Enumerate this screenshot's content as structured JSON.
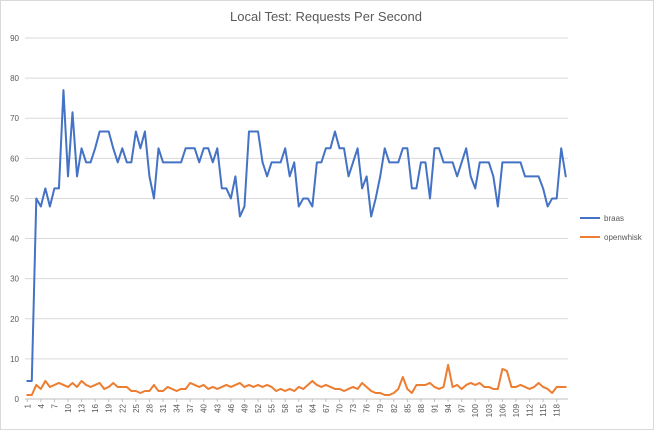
{
  "chart_data": {
    "type": "line",
    "title": "Local Test: Requests Per Second",
    "xlabel": "",
    "ylabel": "",
    "ylim": [
      0,
      90
    ],
    "y_ticks": [
      0,
      10,
      20,
      30,
      40,
      50,
      60,
      70,
      80,
      90
    ],
    "x_range": [
      1,
      120
    ],
    "x_tick_labels": [
      "1",
      "4",
      "7",
      "10",
      "13",
      "16",
      "19",
      "22",
      "25",
      "28",
      "31",
      "34",
      "37",
      "40",
      "43",
      "46",
      "49",
      "52",
      "55",
      "58",
      "61",
      "64",
      "67",
      "70",
      "73",
      "76",
      "79",
      "82",
      "85",
      "88",
      "91",
      "94",
      "97",
      "100",
      "103",
      "106",
      "109",
      "112",
      "115",
      "118"
    ],
    "grid": true,
    "legend_position": "right",
    "series": [
      {
        "name": "braas",
        "color": "#4472C4",
        "values": [
          4.5,
          4.5,
          50,
          48,
          52.5,
          48,
          52.5,
          52.5,
          77,
          55.5,
          71.5,
          55.5,
          62.5,
          59,
          59,
          62.5,
          66.7,
          66.7,
          66.7,
          62.5,
          59,
          62.5,
          59,
          59,
          66.7,
          62.5,
          66.7,
          55.5,
          50,
          62.5,
          59,
          59,
          59,
          59,
          59,
          62.5,
          62.5,
          62.5,
          59,
          62.5,
          62.5,
          59,
          62.5,
          52.5,
          52.5,
          50,
          55.5,
          45.5,
          48,
          66.7,
          66.7,
          66.7,
          59,
          55.5,
          59,
          59,
          59,
          62.5,
          55.5,
          59,
          48,
          50,
          50,
          48,
          59,
          59,
          62.5,
          62.5,
          66.7,
          62.5,
          62.5,
          55.5,
          59,
          62.5,
          52.5,
          55.5,
          45.5,
          50,
          55.5,
          62.5,
          59,
          59,
          59,
          62.5,
          62.5,
          52.5,
          52.5,
          59,
          59,
          50,
          62.5,
          62.5,
          59,
          59,
          59,
          55.5,
          59,
          62.5,
          55.5,
          52.5,
          59,
          59,
          59,
          55.5,
          48,
          59,
          59,
          59,
          59,
          59,
          55.5,
          55.5,
          55.5,
          55.5,
          52.5,
          48,
          50,
          50,
          62.5,
          55.5
        ]
      },
      {
        "name": "openwhisk",
        "color": "#ED7D31",
        "values": [
          1,
          1,
          3.5,
          2.5,
          4.5,
          3,
          3.5,
          4,
          3.5,
          3,
          4,
          3,
          4.5,
          3.5,
          3,
          3.5,
          4,
          2.5,
          3,
          4,
          3,
          3,
          3,
          2,
          2,
          1.5,
          2,
          2,
          3.5,
          2,
          2,
          3,
          2.5,
          2,
          2.5,
          2.5,
          4,
          3.5,
          3,
          3.5,
          2.5,
          3,
          2.5,
          3,
          3.5,
          3,
          3.5,
          4,
          3,
          3.5,
          3,
          3.5,
          3,
          3.5,
          3,
          2,
          2.5,
          2,
          2.5,
          2,
          3,
          2.5,
          3.5,
          4.5,
          3.5,
          3,
          3.5,
          3,
          2.5,
          2.5,
          2,
          2.5,
          3,
          2.5,
          4,
          3,
          2,
          1.5,
          1.5,
          1,
          1,
          1.5,
          2.5,
          5.5,
          2.5,
          1.5,
          3.5,
          3.5,
          3.5,
          4,
          3,
          2.5,
          3,
          8.5,
          3,
          3.5,
          2.5,
          3.5,
          4,
          3.5,
          4,
          3,
          3,
          2.5,
          2.5,
          7.5,
          7,
          3,
          3,
          3.5,
          3,
          2.5,
          3,
          4,
          3,
          2.5,
          1.5,
          3,
          3,
          3
        ]
      }
    ]
  }
}
